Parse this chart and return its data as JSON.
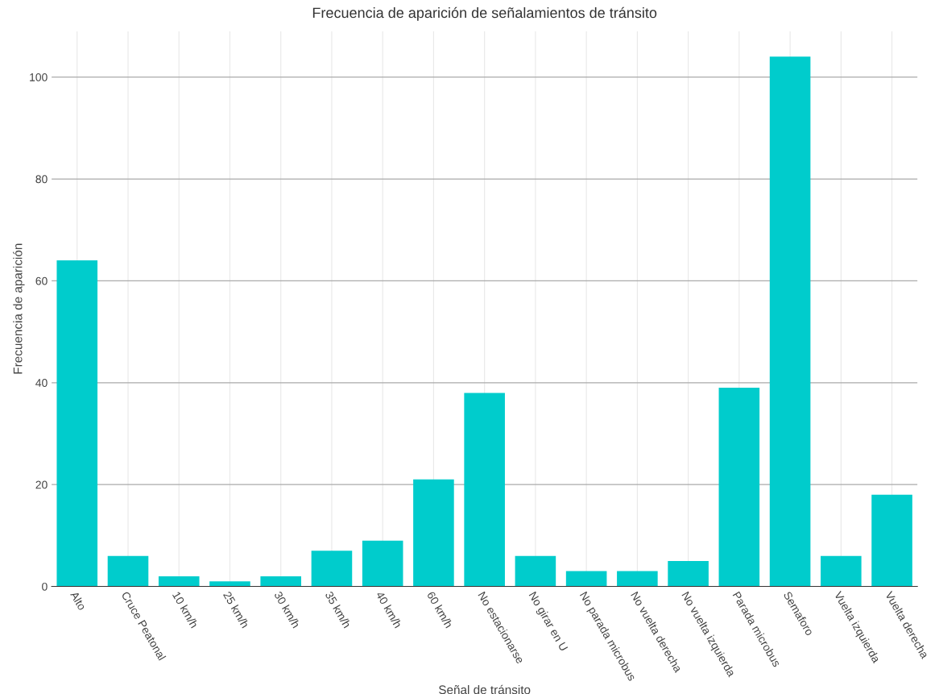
{
  "chart_data": {
    "type": "bar",
    "title": "Frecuencia de aparición de señalamientos de tránsito",
    "xlabel": "Señal de tránsito",
    "ylabel": "Frecuencia de aparición",
    "categories": [
      "Alto",
      "Cruce Peatonal",
      "10 km/h",
      "25 km/h",
      "30 km/h",
      "35 km/h",
      "40 km/h",
      "60 km/h",
      "No estacionarse",
      "No girar en U",
      "No parada microbus",
      "No vuelta derecha",
      "No vuelta izquierda",
      "Parada microbus",
      "Semaforo",
      "Vuelta izquierda",
      "Vuelta derecha"
    ],
    "values": [
      64,
      6,
      2,
      1,
      2,
      7,
      9,
      21,
      38,
      6,
      3,
      3,
      5,
      39,
      104,
      6,
      18
    ],
    "color": "#00cccc",
    "ylim": [
      0,
      109
    ],
    "yticks": [
      0,
      20,
      40,
      60,
      80,
      100
    ],
    "grid": true
  }
}
